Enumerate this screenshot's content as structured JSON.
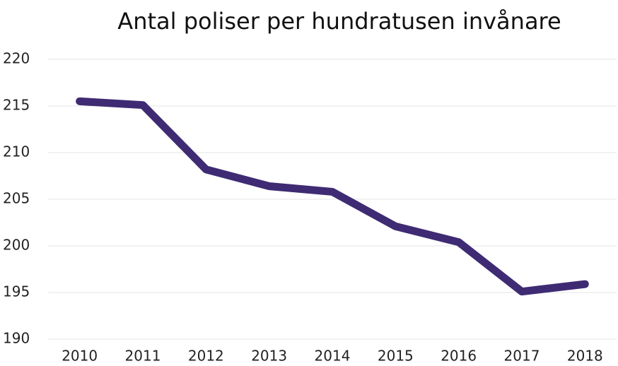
{
  "chart_data": {
    "type": "line",
    "title": "Antal poliser per hundratusen invånare",
    "categories": [
      "2010",
      "2011",
      "2012",
      "2013",
      "2014",
      "2015",
      "2016",
      "2017",
      "2018"
    ],
    "values": [
      215.5,
      215.1,
      208.2,
      206.4,
      205.8,
      202.1,
      200.4,
      195.1,
      195.9
    ],
    "color": "#3f2b73",
    "ylim": [
      190,
      220
    ],
    "yticks": [
      190,
      195,
      200,
      205,
      210,
      215,
      220
    ],
    "grid": true
  }
}
